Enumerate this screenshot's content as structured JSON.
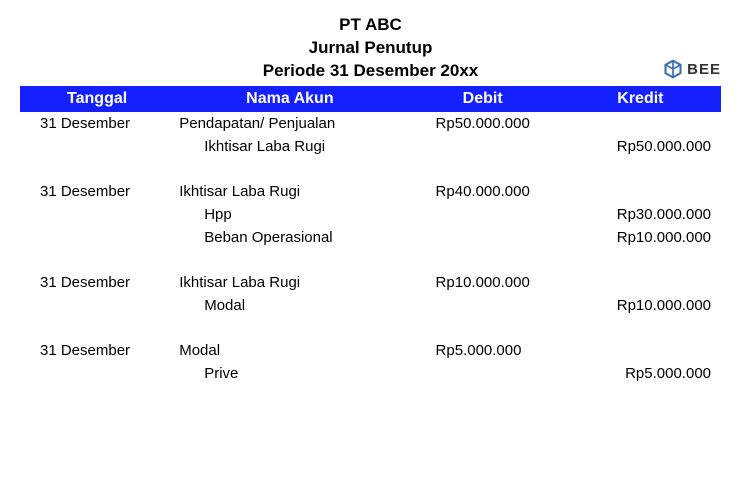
{
  "header": {
    "company_name": "PT ABC",
    "journal_title": "Jurnal Penutup",
    "period": "Periode 31 Desember 20xx"
  },
  "logo": {
    "text": "BEE",
    "icon_color": "#3a6fb0"
  },
  "table": {
    "header_bg": "#1520ff",
    "columns": {
      "tanggal": "Tanggal",
      "akun": "Nama Akun",
      "debit": "Debit",
      "kredit": "Kredit"
    },
    "entries": [
      {
        "tanggal": "31 Desember",
        "lines": [
          {
            "akun": "Pendapatan/ Penjualan",
            "indent": false,
            "debit": "Rp50.000.000",
            "kredit": ""
          },
          {
            "akun": "Ikhtisar Laba Rugi",
            "indent": true,
            "debit": "",
            "kredit": "Rp50.000.000"
          }
        ]
      },
      {
        "tanggal": "31 Desember",
        "lines": [
          {
            "akun": "Ikhtisar Laba Rugi",
            "indent": false,
            "debit": "Rp40.000.000",
            "kredit": ""
          },
          {
            "akun": "Hpp",
            "indent": true,
            "debit": "",
            "kredit": "Rp30.000.000"
          },
          {
            "akun": "Beban Operasional",
            "indent": true,
            "debit": "",
            "kredit": "Rp10.000.000"
          }
        ]
      },
      {
        "tanggal": "31 Desember",
        "lines": [
          {
            "akun": "Ikhtisar Laba Rugi",
            "indent": false,
            "debit": "Rp10.000.000",
            "kredit": ""
          },
          {
            "akun": "Modal",
            "indent": true,
            "debit": "",
            "kredit": "Rp10.000.000"
          }
        ]
      },
      {
        "tanggal": "31 Desember",
        "lines": [
          {
            "akun": "Modal",
            "indent": false,
            "debit": "Rp5.000.000",
            "kredit": ""
          },
          {
            "akun": "Prive",
            "indent": true,
            "debit": "",
            "kredit": "Rp5.000.000"
          }
        ]
      }
    ]
  }
}
